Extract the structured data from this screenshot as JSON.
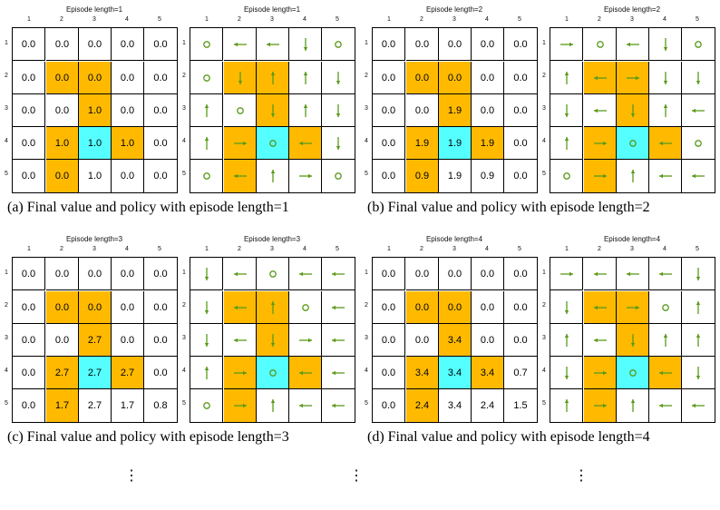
{
  "grid": {
    "column_numbers": [
      "1",
      "2",
      "3",
      "4",
      "5"
    ],
    "row_numbers": [
      "1",
      "2",
      "3",
      "4",
      "5"
    ],
    "cell_types": [
      [
        "w",
        "w",
        "w",
        "w",
        "w"
      ],
      [
        "w",
        "f",
        "f",
        "w",
        "w"
      ],
      [
        "w",
        "w",
        "f",
        "w",
        "w"
      ],
      [
        "w",
        "f",
        "t",
        "f",
        "w"
      ],
      [
        "w",
        "f",
        "w",
        "w",
        "w"
      ]
    ]
  },
  "colors": {
    "forbidden": "#ffba00",
    "target": "#55ffff",
    "arrow": "#5a9a1a"
  },
  "panels": [
    {
      "caption": "(a) Final value and policy with episode length=1",
      "value_title": "Episode length=1",
      "policy_title": "Episode length=1",
      "values": [
        [
          "0.0",
          "0.0",
          "0.0",
          "0.0",
          "0.0"
        ],
        [
          "0.0",
          "0.0",
          "0.0",
          "0.0",
          "0.0"
        ],
        [
          "0.0",
          "0.0",
          "1.0",
          "0.0",
          "0.0"
        ],
        [
          "0.0",
          "1.0",
          "1.0",
          "1.0",
          "0.0"
        ],
        [
          "0.0",
          "0.0",
          "1.0",
          "0.0",
          "0.0"
        ]
      ],
      "policy": [
        [
          "stay",
          "left",
          "left",
          "down",
          "stay"
        ],
        [
          "stay",
          "down",
          "up",
          "up",
          "down"
        ],
        [
          "up",
          "stay",
          "down",
          "up",
          "down"
        ],
        [
          "up",
          "right",
          "stay",
          "left",
          "down"
        ],
        [
          "stay",
          "left",
          "up",
          "right",
          "stay"
        ]
      ]
    },
    {
      "caption": "(b) Final value and policy with episode length=2",
      "value_title": "Episode length=2",
      "policy_title": "Episode length=2",
      "values": [
        [
          "0.0",
          "0.0",
          "0.0",
          "0.0",
          "0.0"
        ],
        [
          "0.0",
          "0.0",
          "0.0",
          "0.0",
          "0.0"
        ],
        [
          "0.0",
          "0.0",
          "1.9",
          "0.0",
          "0.0"
        ],
        [
          "0.0",
          "1.9",
          "1.9",
          "1.9",
          "0.0"
        ],
        [
          "0.0",
          "0.9",
          "1.9",
          "0.9",
          "0.0"
        ]
      ],
      "policy": [
        [
          "right",
          "stay",
          "left",
          "down",
          "stay"
        ],
        [
          "up",
          "left",
          "right",
          "down",
          "down"
        ],
        [
          "down",
          "left",
          "down",
          "up",
          "left"
        ],
        [
          "up",
          "right",
          "stay",
          "left",
          "stay"
        ],
        [
          "stay",
          "right",
          "up",
          "left",
          "left"
        ]
      ]
    },
    {
      "caption": "(c) Final value and policy with episode length=3",
      "value_title": "Episode length=3",
      "policy_title": "Episode length=3",
      "values": [
        [
          "0.0",
          "0.0",
          "0.0",
          "0.0",
          "0.0"
        ],
        [
          "0.0",
          "0.0",
          "0.0",
          "0.0",
          "0.0"
        ],
        [
          "0.0",
          "0.0",
          "2.7",
          "0.0",
          "0.0"
        ],
        [
          "0.0",
          "2.7",
          "2.7",
          "2.7",
          "0.0"
        ],
        [
          "0.0",
          "1.7",
          "2.7",
          "1.7",
          "0.8"
        ]
      ],
      "policy": [
        [
          "down",
          "left",
          "stay",
          "left",
          "left"
        ],
        [
          "down",
          "left",
          "up",
          "stay",
          "left"
        ],
        [
          "down",
          "left",
          "down",
          "right",
          "left"
        ],
        [
          "up",
          "right",
          "stay",
          "left",
          "left"
        ],
        [
          "stay",
          "right",
          "up",
          "left",
          "left"
        ]
      ]
    },
    {
      "caption": "(d) Final value and policy with episode length=4",
      "value_title": "Episode length=4",
      "policy_title": "Episode length=4",
      "values": [
        [
          "0.0",
          "0.0",
          "0.0",
          "0.0",
          "0.0"
        ],
        [
          "0.0",
          "0.0",
          "0.0",
          "0.0",
          "0.0"
        ],
        [
          "0.0",
          "0.0",
          "3.4",
          "0.0",
          "0.0"
        ],
        [
          "0.0",
          "3.4",
          "3.4",
          "3.4",
          "0.7"
        ],
        [
          "0.0",
          "2.4",
          "3.4",
          "2.4",
          "1.5"
        ]
      ],
      "policy": [
        [
          "right",
          "left",
          "left",
          "left",
          "down"
        ],
        [
          "down",
          "left",
          "right",
          "stay",
          "up"
        ],
        [
          "up",
          "left",
          "down",
          "up",
          "up"
        ],
        [
          "down",
          "right",
          "stay",
          "left",
          "down"
        ],
        [
          "up",
          "right",
          "up",
          "left",
          "left"
        ]
      ]
    }
  ],
  "continuation": "⋮"
}
